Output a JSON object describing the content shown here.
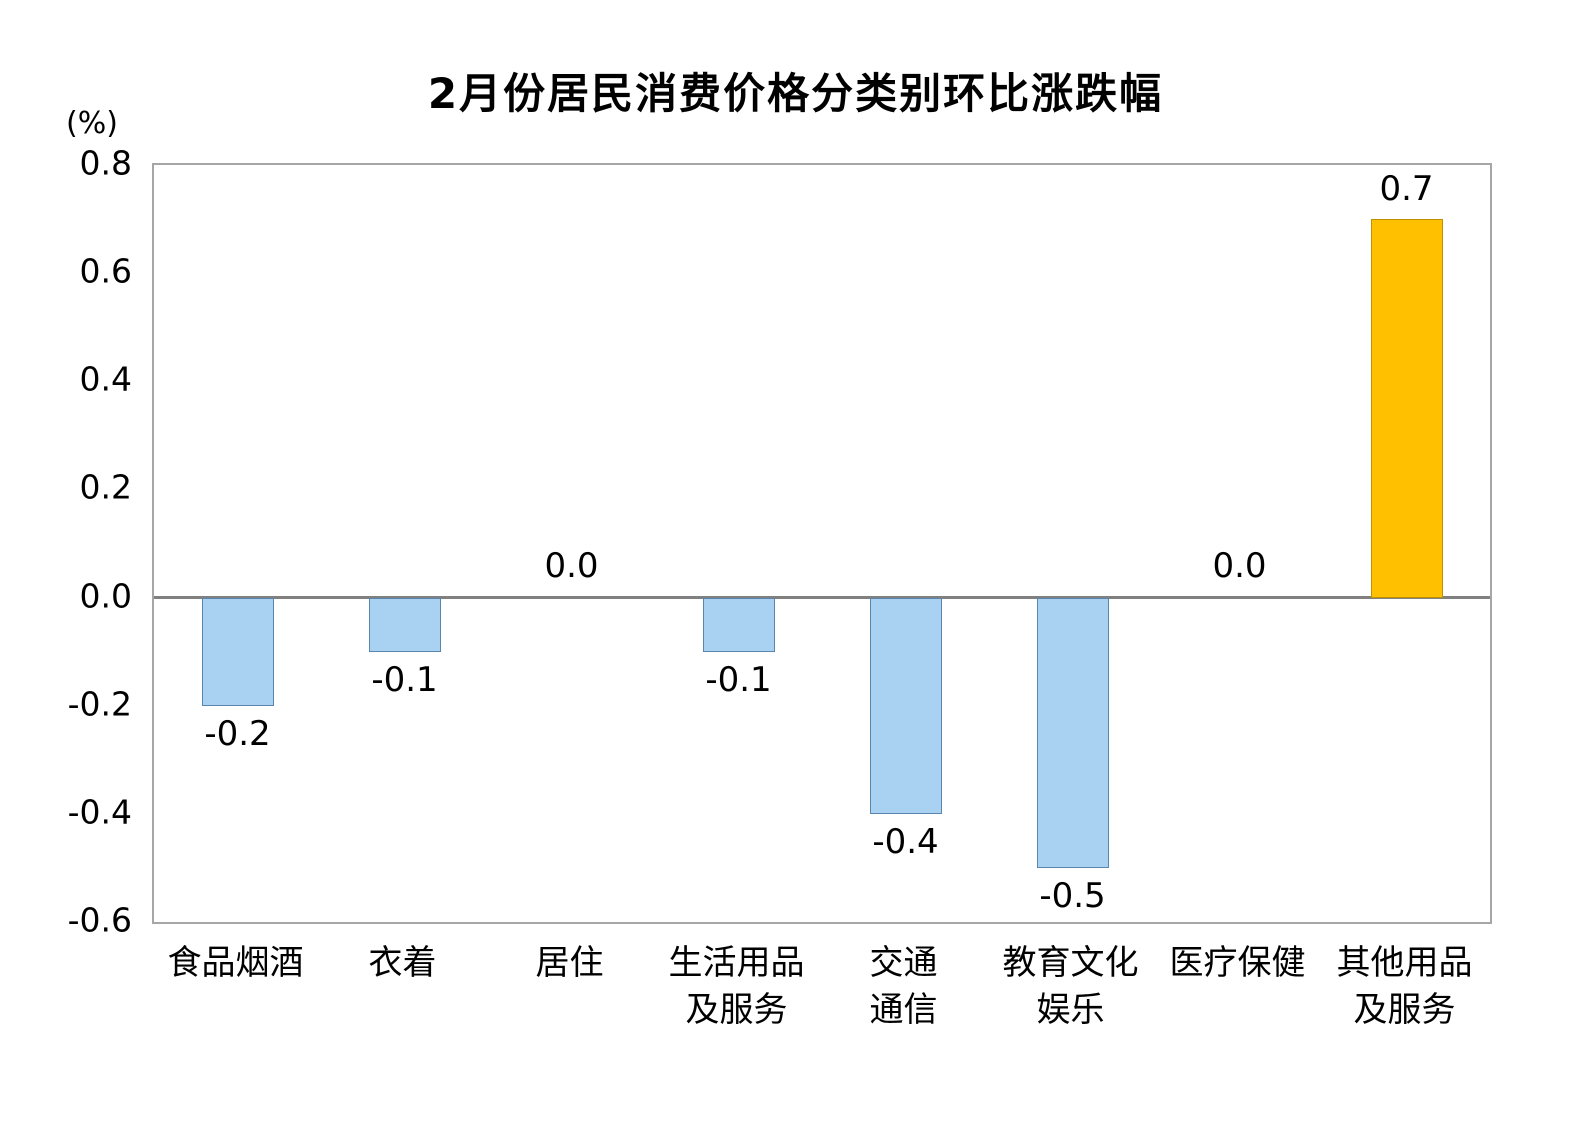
{
  "chart_data": {
    "type": "bar",
    "title": "2月份居民消费价格分类别环比涨跌幅",
    "unit_label": "(%)",
    "categories": [
      [
        "食品烟酒"
      ],
      [
        "衣着"
      ],
      [
        "居住"
      ],
      [
        "生活用品",
        "及服务"
      ],
      [
        "交通",
        "通信"
      ],
      [
        "教育文化",
        "娱乐"
      ],
      [
        "医疗保健"
      ],
      [
        "其他用品",
        "及服务"
      ]
    ],
    "values": [
      -0.2,
      -0.1,
      0.0,
      -0.1,
      -0.4,
      -0.5,
      0.0,
      0.7
    ],
    "value_labels": [
      "-0.2",
      "-0.1",
      "0.0",
      "-0.1",
      "-0.4",
      "-0.5",
      "0.0",
      "0.7"
    ],
    "ylim": [
      -0.6,
      0.8
    ],
    "yticks": [
      0.8,
      0.6,
      0.4,
      0.2,
      0.0,
      -0.2,
      -0.4,
      -0.6
    ],
    "ytick_labels": [
      "0.8",
      "0.6",
      "0.4",
      "0.2",
      "0.0",
      "-0.2",
      "-0.4",
      "-0.6"
    ],
    "grid": false,
    "legend": false,
    "colors": {
      "negative_bar_fill": "#A8D1F2",
      "negative_bar_border": "#5a86ad",
      "positive_bar_fill": "#FFC000",
      "positive_bar_border": "#bf9000",
      "zero_line": "#808080",
      "plot_border": "#a6a6a6",
      "text": "#000000"
    }
  }
}
